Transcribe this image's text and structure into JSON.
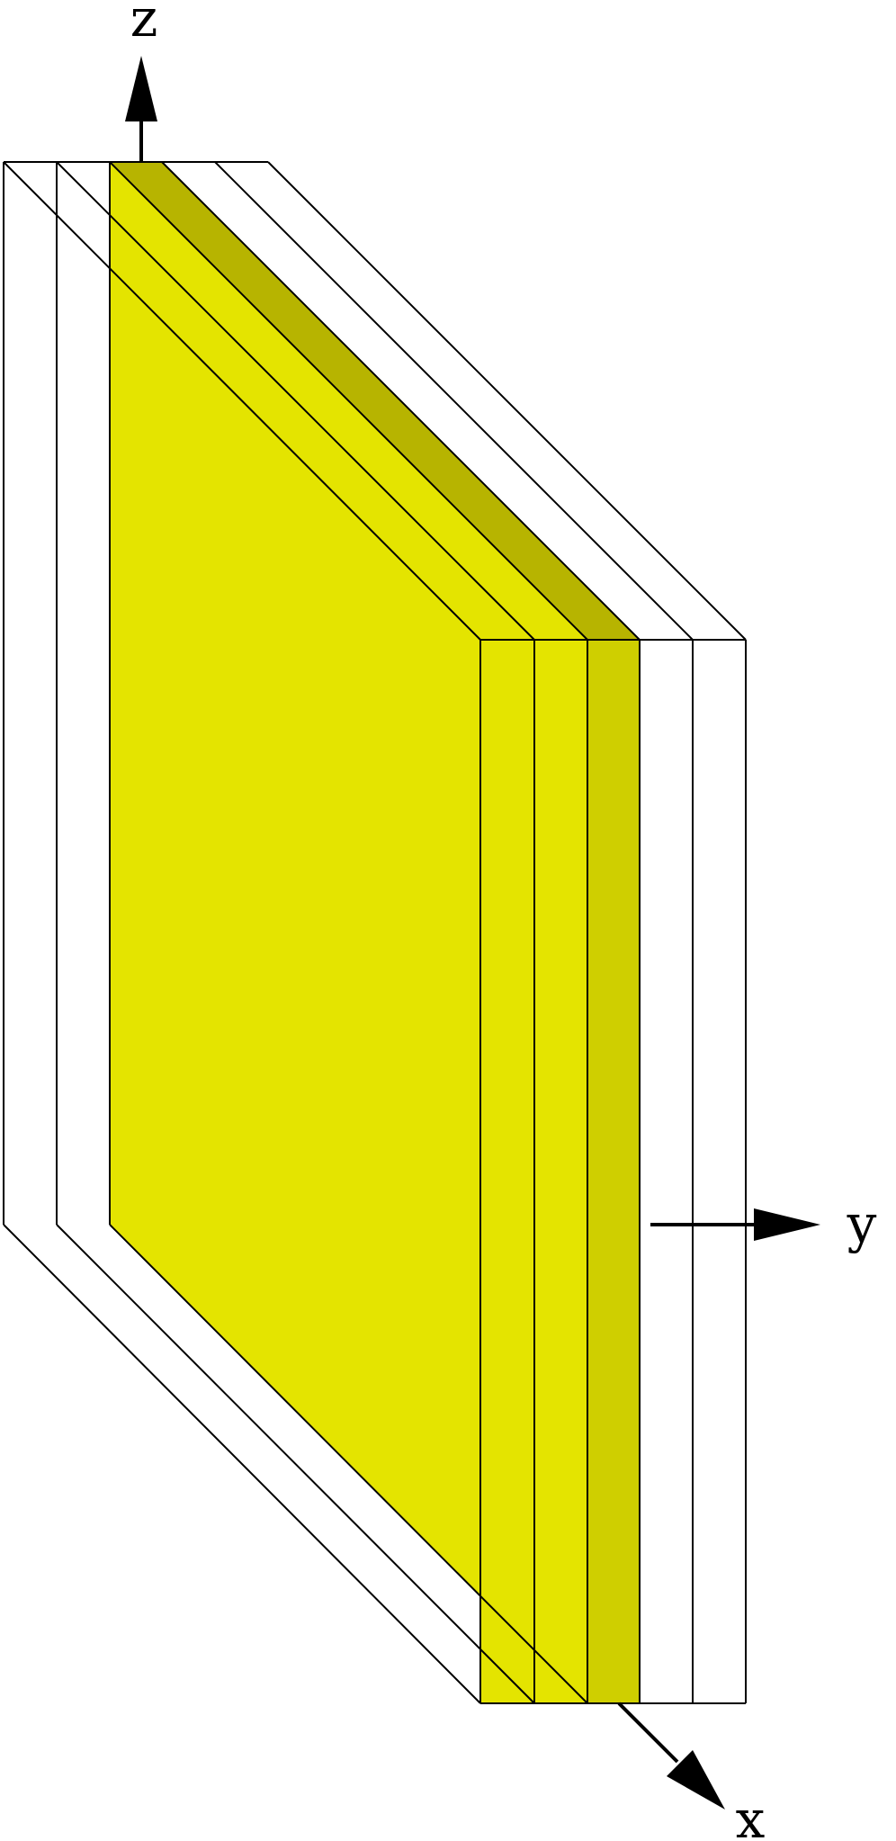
{
  "axes": {
    "z": "z",
    "y": "y",
    "x": "x"
  },
  "colors": {
    "slab_front": "#e4e400",
    "highlight_layer_front": "#cfcf00",
    "highlight_layer_top": "#b7b400",
    "empty_layer_fill": "#ffffff",
    "outline": "#000000"
  },
  "layers": [
    {
      "state": "empty"
    },
    {
      "state": "empty"
    },
    {
      "state": "filled"
    },
    {
      "state": "highlighted"
    },
    {
      "state": "empty"
    },
    {
      "state": "empty"
    }
  ]
}
